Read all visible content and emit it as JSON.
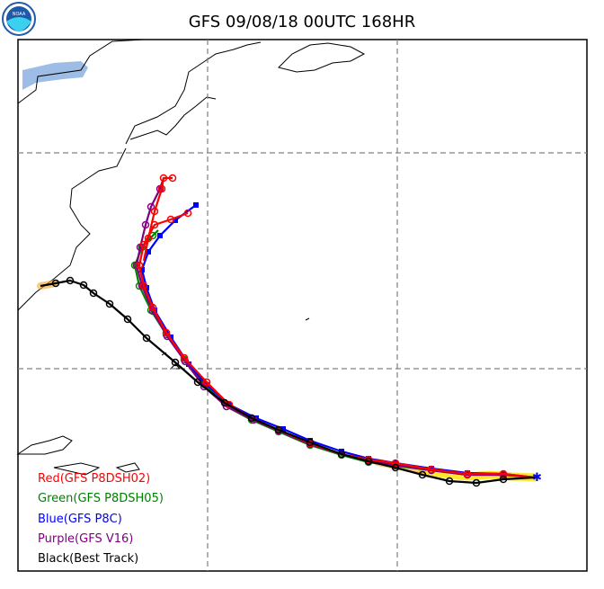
{
  "header": {
    "title": "GFS 09/08/18 00UTC 168HR"
  },
  "legend": {
    "items": [
      {
        "label": "Red(GFS P8DSH02)",
        "color": "#ff0000"
      },
      {
        "label": "Green(GFS P8DSH05)",
        "color": "#008000"
      },
      {
        "label": "Blue(GFS P8C)",
        "color": "#0000ff"
      },
      {
        "label": "Purple(GFS V16)",
        "color": "#800080"
      },
      {
        "label": "Black(Best Track)",
        "color": "#000000"
      }
    ]
  }
}
